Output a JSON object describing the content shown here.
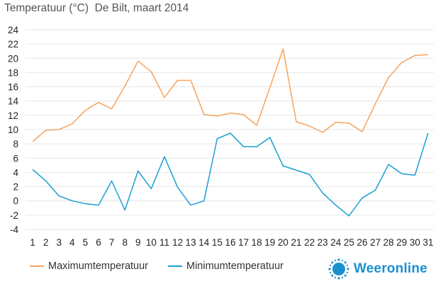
{
  "chart_data": {
    "type": "line",
    "title": "Temperatuur (°C)  De Bilt, maart 2014",
    "x": [
      1,
      2,
      3,
      4,
      5,
      6,
      7,
      8,
      9,
      10,
      11,
      12,
      13,
      14,
      15,
      16,
      17,
      18,
      19,
      20,
      21,
      22,
      23,
      24,
      25,
      26,
      27,
      28,
      29,
      30,
      31
    ],
    "series": [
      {
        "name": "Maximumtemperatuur",
        "color": "#f7a35c",
        "values": [
          8.3,
          9.9,
          10.0,
          10.8,
          12.7,
          13.8,
          12.9,
          16.1,
          19.6,
          18.1,
          14.5,
          16.9,
          16.9,
          12.1,
          11.9,
          12.3,
          12.1,
          10.6,
          15.9,
          21.3,
          11.1,
          10.5,
          9.6,
          11.0,
          10.9,
          9.7,
          13.6,
          17.3,
          19.4,
          20.4,
          20.5
        ]
      },
      {
        "name": "Minimumtemperatuur",
        "color": "#1a9fd3",
        "values": [
          4.4,
          2.8,
          0.7,
          0.0,
          -0.4,
          -0.6,
          2.8,
          -1.3,
          4.2,
          1.7,
          6.2,
          1.9,
          -0.6,
          0.0,
          8.7,
          9.5,
          7.6,
          7.6,
          8.9,
          4.9,
          4.3,
          3.7,
          1.1,
          -0.6,
          -2.1,
          0.4,
          1.5,
          5.1,
          3.8,
          3.6,
          9.5
        ]
      }
    ],
    "ylim": [
      -4,
      24
    ],
    "yticks": [
      -4,
      -2,
      0,
      2,
      4,
      6,
      8,
      10,
      12,
      14,
      16,
      18,
      20,
      22,
      24
    ],
    "grid": true,
    "legend": "bottom-left"
  },
  "legend": {
    "max_label": "Maximumtemperatuur",
    "min_label": "Minimumtemperatuur"
  },
  "logo": {
    "text": "Weeronline",
    "color": "#1a8fd0"
  }
}
